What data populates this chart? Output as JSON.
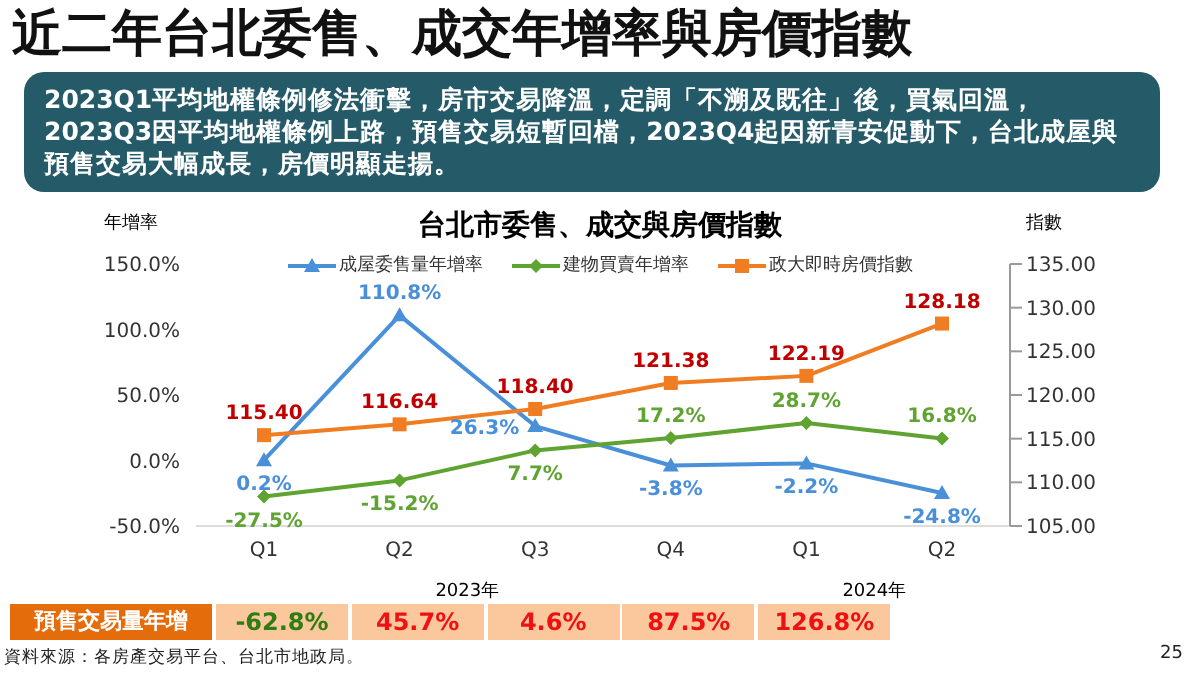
{
  "chart_data": {
    "type": "line",
    "title": "近二年台北委售、成交年增率與房價指數",
    "subtitle": "台北市委售、成交與房價指數",
    "ylabel": "年增率",
    "y2label": "指數",
    "categories": [
      "Q1",
      "Q2",
      "Q3",
      "Q4",
      "Q1",
      "Q2"
    ],
    "series": [
      {
        "name": "成屋委售量年增率",
        "color": "#4a90d9",
        "marker": "triangle",
        "values": [
          0.2,
          110.8,
          26.3,
          -3.8,
          -2.2,
          -24.8
        ],
        "value_labels": [
          "0.2%",
          "110.8%",
          "26.3%",
          "-3.8%",
          "-2.2%",
          "-24.8%"
        ]
      },
      {
        "name": "建物買賣年增率",
        "color": "#5fa331",
        "marker": "diamond",
        "values": [
          -27.5,
          -15.2,
          7.7,
          17.2,
          28.7,
          16.8
        ],
        "value_labels": [
          "-27.5%",
          "-15.2%",
          "7.7%",
          "17.2%",
          "28.7%",
          "16.8%"
        ]
      },
      {
        "name": "政大即時房價指數",
        "color": "#f07d22",
        "marker": "square",
        "axis": "y2",
        "values": [
          115.4,
          116.64,
          118.4,
          121.38,
          122.19,
          128.18
        ],
        "value_labels": [
          "115.40",
          "116.64",
          "118.40",
          "121.38",
          "122.19",
          "128.18"
        ]
      }
    ],
    "ylim": [
      -50,
      150
    ],
    "yticks": [
      {
        "value": -50,
        "label": "-50.0%"
      },
      {
        "value": 0,
        "label": "0.0%"
      },
      {
        "value": 50,
        "label": "50.0%"
      },
      {
        "value": 100,
        "label": "100.0%"
      },
      {
        "value": 150,
        "label": "150.0%"
      }
    ],
    "y2lim": [
      105,
      135
    ],
    "y2ticks": [
      {
        "value": 105,
        "label": "105.00"
      },
      {
        "value": 110,
        "label": "110.00"
      },
      {
        "value": 115,
        "label": "115.00"
      },
      {
        "value": 120,
        "label": "120.00"
      },
      {
        "value": 125,
        "label": "125.00"
      },
      {
        "value": 130,
        "label": "130.00"
      },
      {
        "value": 135,
        "label": "135.00"
      }
    ],
    "legend": "top",
    "grid": false,
    "line_style": "solid",
    "annotations": [
      "2023Q1平均地權條例修法衝擊，房市交易降溫，定調「不溯及既往」後，買氣回溫，2023Q3因平均地權條例上路，預售交易短暫回檔，2023Q4起因新青安促動下，台北成屋與預售交易大幅成長，房價明顯走揚。",
      "2023年",
      "2024年",
      "預售交易量年增",
      "-62.8%",
      "45.7%",
      "4.6%",
      "87.5%",
      "126.8%",
      "資料來源：各房產交易平台、台北市地政局。",
      "25"
    ]
  }
}
